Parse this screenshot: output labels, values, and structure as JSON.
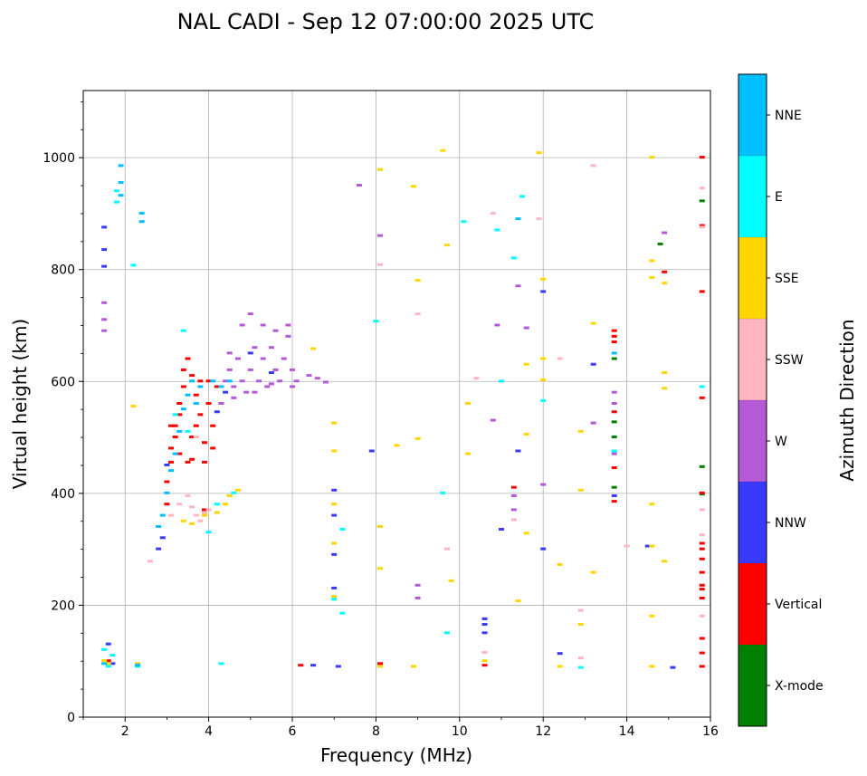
{
  "chart_data": {
    "type": "scatter",
    "title": "NAL CADI - Sep 12 07:00:00 2025 UTC",
    "xlabel": "Frequency (MHz)",
    "ylabel": "Virtual height (km)",
    "xlim": [
      1,
      16
    ],
    "ylim": [
      0,
      1120
    ],
    "xticks": [
      2,
      4,
      6,
      8,
      10,
      12,
      14,
      16
    ],
    "yticks": [
      0,
      200,
      400,
      600,
      800,
      1000
    ],
    "grid": true,
    "colorbar": {
      "label": "Azimuth Direction",
      "categories": [
        {
          "name": "X-mode",
          "color": "#008000"
        },
        {
          "name": "Vertical",
          "color": "#ff0000"
        },
        {
          "name": "NNW",
          "color": "#3a3aff"
        },
        {
          "name": "W",
          "color": "#b45ad6"
        },
        {
          "name": "SSW",
          "color": "#ffb6c1"
        },
        {
          "name": "SSE",
          "color": "#ffd700"
        },
        {
          "name": "E",
          "color": "#00ffff"
        },
        {
          "name": "NNE",
          "color": "#00bfff"
        }
      ]
    },
    "series": [
      {
        "name": "X-mode",
        "points": [
          [
            13.7,
            640
          ],
          [
            13.7,
            527
          ],
          [
            13.7,
            500
          ],
          [
            13.7,
            410
          ],
          [
            14.8,
            845
          ],
          [
            15.8,
            922
          ],
          [
            15.8,
            447
          ],
          [
            15.8,
            398
          ]
        ]
      },
      {
        "name": "Vertical",
        "points": [
          [
            3.0,
            380
          ],
          [
            3.0,
            420
          ],
          [
            3.1,
            455
          ],
          [
            3.1,
            480
          ],
          [
            3.2,
            500
          ],
          [
            3.2,
            520
          ],
          [
            3.3,
            540
          ],
          [
            3.3,
            560
          ],
          [
            3.4,
            590
          ],
          [
            3.4,
            620
          ],
          [
            3.5,
            640
          ],
          [
            3.5,
            455
          ],
          [
            3.6,
            460
          ],
          [
            3.6,
            500
          ],
          [
            3.7,
            520
          ],
          [
            3.7,
            575
          ],
          [
            3.8,
            600
          ],
          [
            3.8,
            540
          ],
          [
            3.9,
            455
          ],
          [
            3.9,
            490
          ],
          [
            4.0,
            600
          ],
          [
            4.0,
            560
          ],
          [
            4.1,
            520
          ],
          [
            4.2,
            590
          ],
          [
            4.3,
            560
          ],
          [
            3.1,
            520
          ],
          [
            3.3,
            470
          ],
          [
            3.6,
            610
          ],
          [
            4.1,
            480
          ],
          [
            3.9,
            370
          ],
          [
            1.6,
            100
          ],
          [
            6.2,
            92
          ],
          [
            8.1,
            95
          ],
          [
            10.6,
            92
          ],
          [
            11.3,
            410
          ],
          [
            13.7,
            690
          ],
          [
            13.7,
            680
          ],
          [
            13.7,
            670
          ],
          [
            13.7,
            545
          ],
          [
            13.7,
            445
          ],
          [
            13.7,
            385
          ],
          [
            14.9,
            795
          ],
          [
            15.8,
            1000
          ],
          [
            15.8,
            878
          ],
          [
            15.8,
            760
          ],
          [
            15.8,
            570
          ],
          [
            15.8,
            400
          ],
          [
            15.8,
            310
          ],
          [
            15.8,
            300
          ],
          [
            15.8,
            282
          ],
          [
            15.8,
            258
          ],
          [
            15.8,
            235
          ],
          [
            15.8,
            228
          ],
          [
            15.8,
            212
          ],
          [
            15.8,
            140
          ],
          [
            15.8,
            114
          ],
          [
            15.8,
            90
          ]
        ]
      },
      {
        "name": "NNW",
        "points": [
          [
            1.5,
            875
          ],
          [
            1.5,
            835
          ],
          [
            1.5,
            805
          ],
          [
            1.6,
            130
          ],
          [
            1.7,
            95
          ],
          [
            2.8,
            300
          ],
          [
            2.9,
            320
          ],
          [
            3.0,
            450
          ],
          [
            4.2,
            545
          ],
          [
            4.4,
            580
          ],
          [
            5.0,
            650
          ],
          [
            5.5,
            615
          ],
          [
            7.0,
            405
          ],
          [
            7.0,
            360
          ],
          [
            7.0,
            290
          ],
          [
            7.0,
            230
          ],
          [
            7.1,
            90
          ],
          [
            7.9,
            475
          ],
          [
            10.6,
            175
          ],
          [
            10.6,
            165
          ],
          [
            10.6,
            150
          ],
          [
            11.0,
            335
          ],
          [
            11.4,
            475
          ],
          [
            12.0,
            760
          ],
          [
            12.0,
            300
          ],
          [
            12.4,
            113
          ],
          [
            13.2,
            630
          ],
          [
            14.5,
            305
          ],
          [
            15.1,
            88
          ],
          [
            6.5,
            92
          ],
          [
            13.7,
            395
          ]
        ]
      },
      {
        "name": "W",
        "points": [
          [
            1.5,
            740
          ],
          [
            1.5,
            710
          ],
          [
            1.5,
            690
          ],
          [
            4.4,
            600
          ],
          [
            4.5,
            620
          ],
          [
            4.6,
            590
          ],
          [
            4.7,
            640
          ],
          [
            4.8,
            600
          ],
          [
            4.9,
            580
          ],
          [
            5.0,
            620
          ],
          [
            5.1,
            660
          ],
          [
            5.2,
            600
          ],
          [
            5.3,
            640
          ],
          [
            5.4,
            590
          ],
          [
            5.5,
            660
          ],
          [
            5.6,
            620
          ],
          [
            5.7,
            600
          ],
          [
            5.8,
            640
          ],
          [
            5.9,
            680
          ],
          [
            6.0,
            620
          ],
          [
            6.1,
            600
          ],
          [
            4.5,
            650
          ],
          [
            4.8,
            700
          ],
          [
            5.0,
            720
          ],
          [
            5.3,
            700
          ],
          [
            5.6,
            690
          ],
          [
            5.9,
            700
          ],
          [
            4.3,
            560
          ],
          [
            4.6,
            570
          ],
          [
            5.1,
            580
          ],
          [
            5.5,
            595
          ],
          [
            6.0,
            590
          ],
          [
            6.4,
            610
          ],
          [
            6.6,
            605
          ],
          [
            6.8,
            598
          ],
          [
            7.6,
            950
          ],
          [
            9.0,
            235
          ],
          [
            9.0,
            212
          ],
          [
            10.8,
            530
          ],
          [
            10.9,
            700
          ],
          [
            11.3,
            395
          ],
          [
            11.3,
            370
          ],
          [
            11.4,
            770
          ],
          [
            11.6,
            695
          ],
          [
            12.0,
            415
          ],
          [
            13.2,
            525
          ],
          [
            13.7,
            580
          ],
          [
            13.7,
            560
          ],
          [
            13.7,
            470
          ],
          [
            14.9,
            865
          ],
          [
            8.1,
            860
          ]
        ]
      },
      {
        "name": "SSW",
        "points": [
          [
            3.1,
            360
          ],
          [
            3.3,
            380
          ],
          [
            3.5,
            395
          ],
          [
            3.6,
            375
          ],
          [
            3.7,
            360
          ],
          [
            3.8,
            350
          ],
          [
            3.9,
            365
          ],
          [
            2.6,
            278
          ],
          [
            9.0,
            720
          ],
          [
            9.7,
            300
          ],
          [
            10.4,
            605
          ],
          [
            10.6,
            115
          ],
          [
            10.8,
            900
          ],
          [
            11.3,
            352
          ],
          [
            11.9,
            890
          ],
          [
            12.4,
            640
          ],
          [
            12.9,
            190
          ],
          [
            12.9,
            105
          ],
          [
            13.2,
            985
          ],
          [
            14.0,
            305
          ],
          [
            15.8,
            945
          ],
          [
            15.8,
            370
          ],
          [
            15.8,
            325
          ],
          [
            15.8,
            180
          ],
          [
            15.8,
            875
          ],
          [
            8.1,
            808
          ],
          [
            4.0,
            370
          ],
          [
            3.7,
            500
          ]
        ]
      },
      {
        "name": "SSE",
        "points": [
          [
            1.5,
            100
          ],
          [
            1.6,
            95
          ],
          [
            2.3,
            95
          ],
          [
            3.4,
            350
          ],
          [
            3.6,
            345
          ],
          [
            3.9,
            360
          ],
          [
            4.2,
            365
          ],
          [
            4.4,
            380
          ],
          [
            4.5,
            395
          ],
          [
            4.7,
            405
          ],
          [
            2.2,
            555
          ],
          [
            6.5,
            658
          ],
          [
            7.0,
            525
          ],
          [
            7.0,
            475
          ],
          [
            7.0,
            380
          ],
          [
            7.0,
            310
          ],
          [
            7.0,
            215
          ],
          [
            8.1,
            978
          ],
          [
            8.1,
            340
          ],
          [
            8.1,
            265
          ],
          [
            8.1,
            90
          ],
          [
            8.5,
            485
          ],
          [
            8.9,
            948
          ],
          [
            8.9,
            90
          ],
          [
            9.0,
            780
          ],
          [
            9.0,
            497
          ],
          [
            9.6,
            1012
          ],
          [
            9.7,
            843
          ],
          [
            9.8,
            243
          ],
          [
            10.2,
            470
          ],
          [
            10.2,
            560
          ],
          [
            10.6,
            100
          ],
          [
            11.4,
            207
          ],
          [
            11.6,
            630
          ],
          [
            11.6,
            505
          ],
          [
            11.6,
            328
          ],
          [
            11.9,
            1008
          ],
          [
            12.0,
            782
          ],
          [
            12.0,
            640
          ],
          [
            12.0,
            602
          ],
          [
            12.4,
            272
          ],
          [
            12.4,
            90
          ],
          [
            12.9,
            510
          ],
          [
            12.9,
            405
          ],
          [
            12.9,
            165
          ],
          [
            13.2,
            703
          ],
          [
            13.2,
            258
          ],
          [
            14.6,
            1000
          ],
          [
            14.6,
            815
          ],
          [
            14.6,
            785
          ],
          [
            14.6,
            380
          ],
          [
            14.6,
            305
          ],
          [
            14.6,
            180
          ],
          [
            14.6,
            90
          ],
          [
            14.9,
            775
          ],
          [
            14.9,
            615
          ],
          [
            14.9,
            587
          ],
          [
            14.9,
            278
          ]
        ]
      },
      {
        "name": "E",
        "points": [
          [
            1.5,
            120
          ],
          [
            1.6,
            90
          ],
          [
            1.7,
            110
          ],
          [
            1.8,
            940
          ],
          [
            1.8,
            920
          ],
          [
            2.2,
            807
          ],
          [
            2.3,
            90
          ],
          [
            3.2,
            540
          ],
          [
            3.4,
            690
          ],
          [
            3.5,
            510
          ],
          [
            4.0,
            330
          ],
          [
            4.2,
            380
          ],
          [
            4.6,
            400
          ],
          [
            4.3,
            95
          ],
          [
            7.0,
            210
          ],
          [
            7.2,
            185
          ],
          [
            7.2,
            335
          ],
          [
            8.0,
            707
          ],
          [
            9.6,
            400
          ],
          [
            9.7,
            150
          ],
          [
            10.1,
            885
          ],
          [
            10.9,
            870
          ],
          [
            11.0,
            600
          ],
          [
            11.3,
            820
          ],
          [
            11.5,
            930
          ],
          [
            12.0,
            565
          ],
          [
            12.9,
            88
          ],
          [
            13.7,
            475
          ],
          [
            15.8,
            590
          ]
        ]
      },
      {
        "name": "NNE",
        "points": [
          [
            1.9,
            985
          ],
          [
            1.9,
            955
          ],
          [
            1.9,
            932
          ],
          [
            2.4,
            900
          ],
          [
            2.4,
            885
          ],
          [
            2.8,
            340
          ],
          [
            2.9,
            360
          ],
          [
            3.0,
            400
          ],
          [
            3.1,
            440
          ],
          [
            3.2,
            470
          ],
          [
            3.3,
            510
          ],
          [
            3.4,
            550
          ],
          [
            3.5,
            575
          ],
          [
            3.6,
            600
          ],
          [
            3.7,
            560
          ],
          [
            3.8,
            590
          ],
          [
            4.1,
            600
          ],
          [
            4.3,
            590
          ],
          [
            4.5,
            600
          ],
          [
            1.5,
            95
          ],
          [
            2.3,
            92
          ],
          [
            11.4,
            890
          ],
          [
            13.7,
            650
          ]
        ]
      }
    ]
  }
}
